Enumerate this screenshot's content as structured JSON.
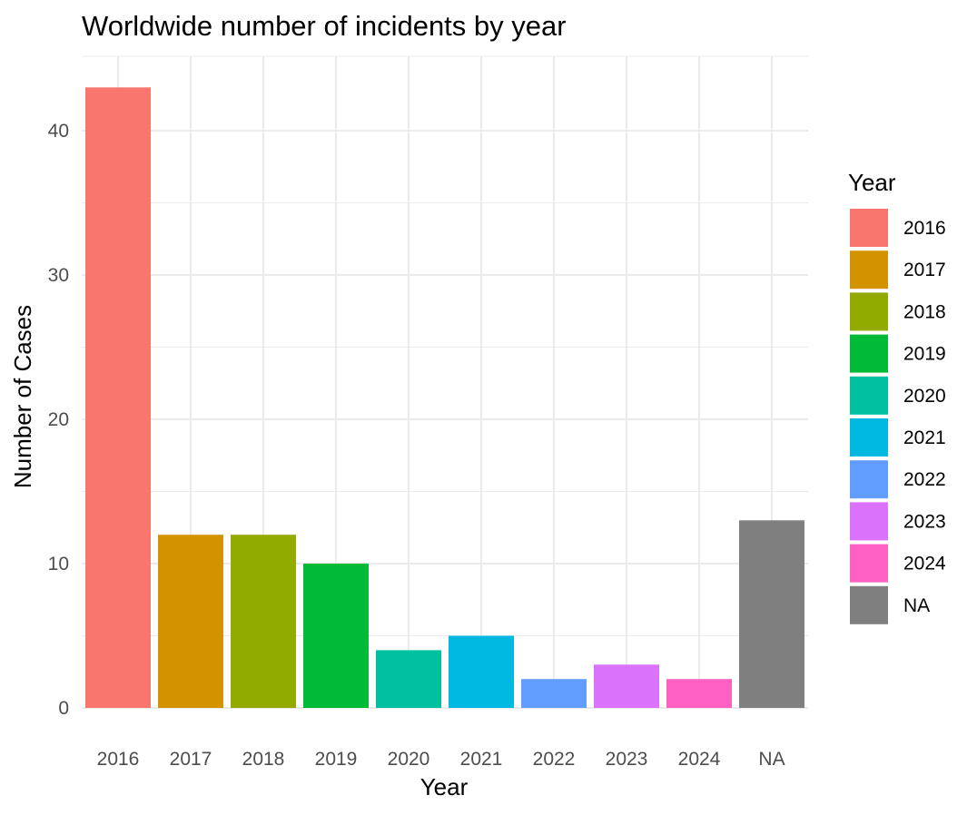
{
  "chart_data": {
    "type": "bar",
    "title": "Worldwide number of incidents by year",
    "xlabel": "Year",
    "ylabel": "Number of Cases",
    "categories": [
      "2016",
      "2017",
      "2018",
      "2019",
      "2020",
      "2021",
      "2022",
      "2023",
      "2024",
      "NA"
    ],
    "values": [
      43,
      12,
      12,
      10,
      4,
      5,
      2,
      3,
      2,
      13
    ],
    "colors": [
      "#F8766D",
      "#D39200",
      "#93AA00",
      "#00BA38",
      "#00C19F",
      "#00B9E3",
      "#619CFF",
      "#DB72FB",
      "#FF61C3",
      "#7F7F7F"
    ],
    "ylim": [
      0,
      45
    ],
    "yticks": [
      0,
      10,
      20,
      30,
      40
    ],
    "grid": true,
    "legend": {
      "title": "Year",
      "position": "right",
      "entries": [
        "2016",
        "2017",
        "2018",
        "2019",
        "2020",
        "2021",
        "2022",
        "2023",
        "2024",
        "NA"
      ]
    }
  }
}
